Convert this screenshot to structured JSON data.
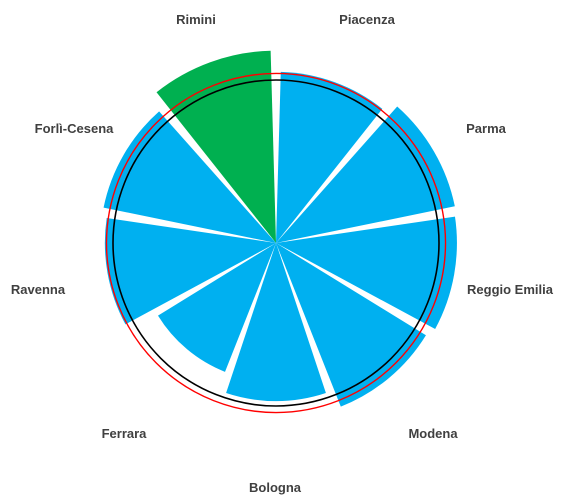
{
  "chart_data": {
    "type": "polar-bar",
    "title": "",
    "categories": [
      "Piacenza",
      "Parma",
      "Reggio Emilia",
      "Modena",
      "Bologna",
      "Ferrara",
      "Ravenna",
      "Forlì-Cesena",
      "Rimini"
    ],
    "values": [
      1.05,
      1.12,
      1.11,
      1.08,
      0.97,
      0.85,
      1.05,
      1.08,
      1.18
    ],
    "highlight": "Rimini",
    "reference_circles": [
      1.0,
      1.04
    ],
    "colors": {
      "bar": "#00B0F0",
      "highlight": "#00B050",
      "inner_circle": "#000000",
      "outer_circle": "#FF0000",
      "label": "#404040"
    }
  }
}
